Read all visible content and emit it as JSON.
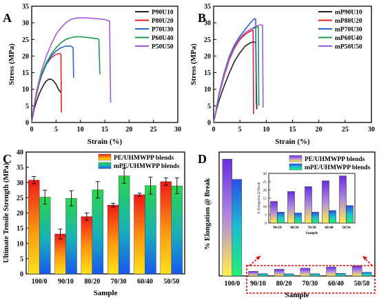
{
  "chart_data": [
    {
      "panel": "A",
      "type": "line",
      "xlabel": "Strain (%)",
      "ylabel": "Stress (MPa)",
      "xlim": [
        0,
        30
      ],
      "ylim": [
        0,
        35
      ],
      "xticks": [
        "0",
        "5",
        "10",
        "15",
        "20",
        "25",
        "30"
      ],
      "yticks": [
        "0",
        "5",
        "10",
        "15",
        "20",
        "25",
        "30",
        "35"
      ],
      "legend": "top-right",
      "series": [
        {
          "name": "P90U10",
          "color": "#222222",
          "points": [
            [
              0,
              0
            ],
            [
              0.5,
              4
            ],
            [
              1,
              6.5
            ],
            [
              1.5,
              8.5
            ],
            [
              2,
              10
            ],
            [
              2.5,
              11.5
            ],
            [
              3,
              12.5
            ],
            [
              3.5,
              13
            ],
            [
              4,
              13
            ],
            [
              4.5,
              12.5
            ],
            [
              5,
              11.5
            ],
            [
              5.5,
              10
            ],
            [
              6,
              9
            ]
          ]
        },
        {
          "name": "P80U20",
          "color": "#e8202a",
          "points": [
            [
              0,
              0
            ],
            [
              0.5,
              5
            ],
            [
              1,
              8.5
            ],
            [
              1.5,
              11.5
            ],
            [
              2,
              14
            ],
            [
              3,
              17.5
            ],
            [
              4,
              19.5
            ],
            [
              5,
              20.5
            ],
            [
              5.7,
              20.8
            ],
            [
              6,
              20.5
            ],
            [
              6.1,
              3
            ]
          ]
        },
        {
          "name": "P70U30",
          "color": "#2a66d0",
          "points": [
            [
              0,
              0
            ],
            [
              0.5,
              5
            ],
            [
              1,
              9
            ],
            [
              2,
              14
            ],
            [
              3,
              17.5
            ],
            [
              4,
              20
            ],
            [
              5,
              21.5
            ],
            [
              6,
              22.5
            ],
            [
              7,
              23
            ],
            [
              8,
              23
            ],
            [
              8.5,
              22.5
            ],
            [
              8.6,
              13.5
            ]
          ]
        },
        {
          "name": "P60U40",
          "color": "#1a9a4a",
          "points": [
            [
              0,
              0
            ],
            [
              0.5,
              5
            ],
            [
              1,
              9
            ],
            [
              2,
              14.5
            ],
            [
              3,
              18
            ],
            [
              4,
              20.5
            ],
            [
              5,
              22.5
            ],
            [
              6,
              24
            ],
            [
              7,
              25
            ],
            [
              8,
              25.5
            ],
            [
              9,
              25.8
            ],
            [
              10,
              25.8
            ],
            [
              12,
              25.5
            ],
            [
              13.5,
              25.2
            ],
            [
              13.8,
              25
            ],
            [
              14,
              14.5
            ]
          ]
        },
        {
          "name": "P50U50",
          "color": "#a05cd8",
          "points": [
            [
              0,
              0
            ],
            [
              0.5,
              5
            ],
            [
              1,
              9.5
            ],
            [
              2,
              15.5
            ],
            [
              3,
              20
            ],
            [
              4,
              23.5
            ],
            [
              5,
              26.5
            ],
            [
              6,
              28.5
            ],
            [
              7,
              30
            ],
            [
              8,
              31
            ],
            [
              9,
              31.4
            ],
            [
              10,
              31.5
            ],
            [
              11,
              31.5
            ],
            [
              13,
              31.3
            ],
            [
              15,
              31
            ],
            [
              16,
              30.5
            ],
            [
              16.2,
              6
            ]
          ]
        }
      ]
    },
    {
      "panel": "B",
      "type": "line",
      "xlabel": "Strain (%)",
      "ylabel": "Stress (MPa)",
      "xlim": [
        0,
        30
      ],
      "ylim": [
        0,
        35
      ],
      "xticks": [
        "0",
        "5",
        "10",
        "15",
        "20",
        "25",
        "30"
      ],
      "yticks": [
        "0",
        "5",
        "10",
        "15",
        "20",
        "25",
        "30",
        "35"
      ],
      "legend": "top-right",
      "series": [
        {
          "name": "mP90U10",
          "color": "#222222",
          "points": [
            [
              0,
              0
            ],
            [
              0.5,
              3.5
            ],
            [
              1,
              6.5
            ],
            [
              2,
              11
            ],
            [
              3,
              15
            ],
            [
              4,
              18.5
            ],
            [
              5,
              21
            ],
            [
              6,
              23
            ],
            [
              7,
              24
            ],
            [
              7.5,
              24.3
            ],
            [
              8,
              24
            ],
            [
              8.2,
              4
            ]
          ]
        },
        {
          "name": "mP80U20",
          "color": "#e8202a",
          "points": [
            [
              0,
              0
            ],
            [
              0.5,
              4
            ],
            [
              1,
              8
            ],
            [
              2,
              14
            ],
            [
              3,
              19
            ],
            [
              4,
              22.5
            ],
            [
              5,
              25
            ],
            [
              6,
              26.5
            ],
            [
              7,
              27.5
            ],
            [
              7.5,
              27.8
            ],
            [
              7.6,
              2.5
            ]
          ]
        },
        {
          "name": "mP70U30",
          "color": "#2a66d0",
          "points": [
            [
              0,
              0
            ],
            [
              0.5,
              4
            ],
            [
              1,
              8.5
            ],
            [
              2,
              15
            ],
            [
              3,
              20
            ],
            [
              4,
              23.5
            ],
            [
              5,
              26
            ],
            [
              6,
              28
            ],
            [
              7,
              30
            ],
            [
              7.8,
              31.3
            ],
            [
              8,
              31
            ],
            [
              8.1,
              5.5
            ]
          ]
        },
        {
          "name": "mP60U40",
          "color": "#1a9a4a",
          "points": [
            [
              0,
              0
            ],
            [
              0.5,
              4
            ],
            [
              1,
              8
            ],
            [
              2,
              14.5
            ],
            [
              3,
              19.5
            ],
            [
              4,
              23
            ],
            [
              5,
              25.5
            ],
            [
              6,
              27
            ],
            [
              7,
              28
            ],
            [
              8,
              28.6
            ],
            [
              8.5,
              28.8
            ],
            [
              8.6,
              5
            ]
          ]
        },
        {
          "name": "mP50U50",
          "color": "#a05cd8",
          "points": [
            [
              0,
              0
            ],
            [
              0.5,
              4
            ],
            [
              1,
              8
            ],
            [
              2,
              14.5
            ],
            [
              3,
              19.5
            ],
            [
              4,
              23
            ],
            [
              5,
              25.5
            ],
            [
              6,
              27
            ],
            [
              7,
              28
            ],
            [
              8,
              29
            ],
            [
              9,
              29.4
            ],
            [
              9.3,
              29.3
            ],
            [
              9.4,
              4.5
            ]
          ]
        }
      ]
    },
    {
      "panel": "C",
      "type": "bar",
      "xlabel": "Sample",
      "ylabel": "Ultimate Tensile Strength (MPa)",
      "ylim": [
        0,
        40
      ],
      "yticks": [
        "0",
        "5",
        "10",
        "15",
        "20",
        "25",
        "30",
        "35",
        "40"
      ],
      "categories": [
        "100/0",
        "90/10",
        "80/20",
        "70/30",
        "60/40",
        "50/50"
      ],
      "legend": "top-right",
      "series": [
        {
          "name": "PE/UHMWPP blends",
          "values": [
            30.8,
            13.1,
            18.8,
            22.6,
            26.0,
            30.3
          ],
          "errors": [
            1.2,
            1.6,
            1.2,
            0.6,
            0.5,
            1.2
          ]
        },
        {
          "name": "mPE/UHMWPP blends",
          "values": [
            25.2,
            24.8,
            27.6,
            32.2,
            29.0,
            28.9
          ],
          "errors": [
            2.3,
            2.5,
            2.7,
            2.5,
            2.8,
            2.6
          ]
        }
      ]
    },
    {
      "panel": "D",
      "type": "bar",
      "xlabel": "Sample",
      "ylabel": "% Elongation @ Break",
      "ylim": [
        0,
        350
      ],
      "categories": [
        "100/0",
        "90/10",
        "80/20",
        "70/30",
        "60/40",
        "50/50"
      ],
      "legend": "top-right",
      "series": [
        {
          "name": "PE/UHMWPP blends",
          "values": [
            330,
            13,
            19,
            22,
            25.5,
            28.5
          ]
        },
        {
          "name": "mPE/UHMWPP blends",
          "values": [
            273,
            6.5,
            6,
            6.5,
            7.5,
            10.5
          ]
        }
      ],
      "inset": {
        "xlabel": "Sample",
        "ylabel": "% Elongation @ Break",
        "ylim": [
          0,
          30
        ],
        "yticks": [
          "0",
          "5",
          "10",
          "15",
          "20",
          "25",
          "30"
        ],
        "categories": [
          "90/10",
          "80/20",
          "70/30",
          "60/40",
          "50/50"
        ],
        "series": [
          {
            "name": "PE/UHMWPP blends",
            "values": [
              13,
              19,
              22,
              25.5,
              28.5
            ]
          },
          {
            "name": "mPE/UHMWPP blends",
            "values": [
              6.5,
              6,
              6.5,
              7.5,
              10.5
            ]
          }
        ]
      }
    }
  ],
  "panel_letters": [
    "A",
    "B",
    "C",
    "D"
  ]
}
